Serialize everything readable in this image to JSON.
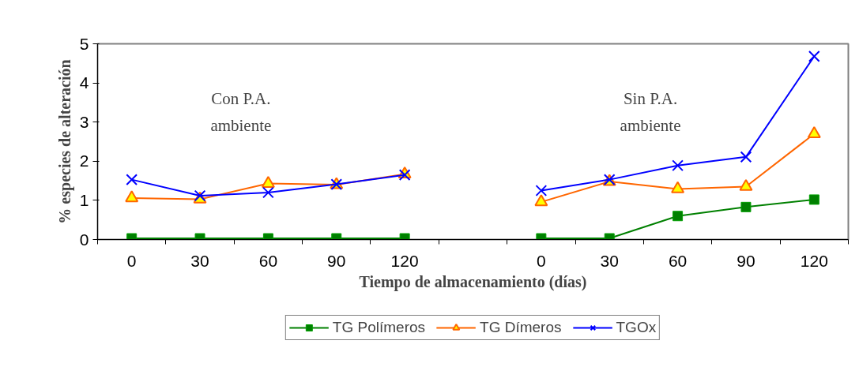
{
  "chart_data": {
    "type": "line",
    "xlabel": "Tiempo de almacenamiento (días)",
    "ylabel": "% especies de alteración",
    "categories": [
      "0",
      "30",
      "60",
      "90",
      "120",
      null,
      "0",
      "30",
      "60",
      "90",
      "120"
    ],
    "series": [
      {
        "name": "TG Polímeros",
        "color": "#008000",
        "marker": "square",
        "values": [
          0.03,
          0.03,
          0.03,
          0.03,
          0.03,
          null,
          0.03,
          0.03,
          0.6,
          0.83,
          1.02
        ]
      },
      {
        "name": "TG Dímeros",
        "color": "#ff6600",
        "marker": "triangle",
        "values": [
          1.06,
          1.03,
          1.43,
          1.4,
          1.67,
          null,
          0.96,
          1.48,
          1.29,
          1.35,
          2.7
        ]
      },
      {
        "name": "TGOx",
        "color": "#0000ff",
        "marker": "cross",
        "values": [
          1.53,
          1.12,
          1.2,
          1.41,
          1.65,
          null,
          1.25,
          1.53,
          1.89,
          2.11,
          4.68
        ]
      }
    ],
    "annotations": [
      "Con P.A.\nambiente",
      "Sin P.A.\nambiente"
    ],
    "ylim": [
      0,
      5
    ],
    "yticks": [
      0,
      1,
      2,
      3,
      4,
      5
    ],
    "grid": false,
    "legend": "bottom",
    "line_style": "solid"
  }
}
